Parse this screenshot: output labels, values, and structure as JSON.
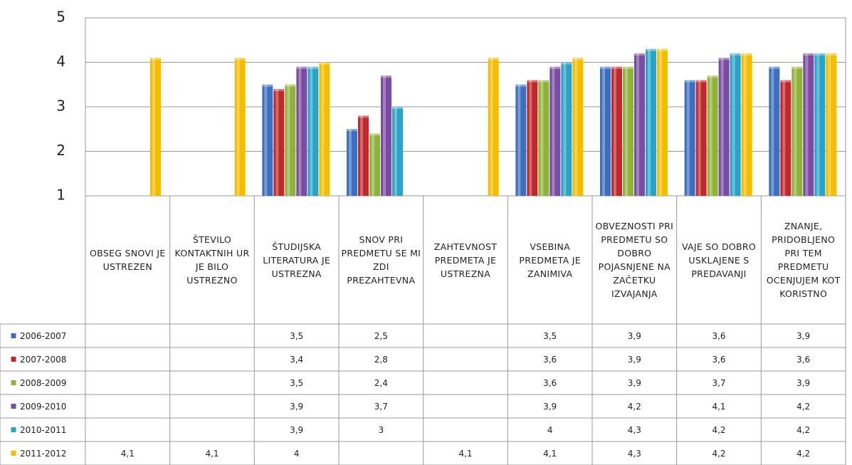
{
  "chart_data": {
    "type": "bar",
    "categories": [
      "OBSEG SNOVI JE USTREZEN",
      "ŠTEVILO KONTAKTNIH UR JE BILO USTREZNO",
      "ŠTUDIJSKA LITERATURA JE USTREZNA",
      "SNOV PRI PREDMETU SE MI ZDI PREZAHTEVNA",
      "ZAHTEVNOST PREDMETA JE USTREZNA",
      "VSEBINA PREDMETA JE ZANIMIVA",
      "OBVEZNOSTI PRI PREDMETU SO DOBRO POJASNJENE NA ZAČETKU IZVAJANJA",
      "VAJE SO DOBRO USKLAJENE S PREDAVANJI",
      "ZNANJE, PRIDOBLJENO PRI TEM PREDMETU OCENJUJEM KOT KORISTNO"
    ],
    "series": [
      {
        "name": "2006-2007",
        "color": "#3b6fc0",
        "values": [
          null,
          null,
          3.5,
          2.5,
          null,
          3.5,
          3.9,
          3.6,
          3.9
        ],
        "value_labels": [
          null,
          null,
          "3,5",
          "2,5",
          null,
          "3,5",
          "3,9",
          "3,6",
          "3,9"
        ]
      },
      {
        "name": "2007-2008",
        "color": "#c0282b",
        "values": [
          null,
          null,
          3.4,
          2.8,
          null,
          3.6,
          3.9,
          3.6,
          3.6
        ],
        "value_labels": [
          null,
          null,
          "3,4",
          "2,8",
          null,
          "3,6",
          "3,9",
          "3,6",
          "3,6"
        ]
      },
      {
        "name": "2008-2009",
        "color": "#8fb33a",
        "values": [
          null,
          null,
          3.5,
          2.4,
          null,
          3.6,
          3.9,
          3.7,
          3.9
        ],
        "value_labels": [
          null,
          null,
          "3,5",
          "2,4",
          null,
          "3,6",
          "3,9",
          "3,7",
          "3,9"
        ]
      },
      {
        "name": "2009-2010",
        "color": "#7a4ba3",
        "values": [
          null,
          null,
          3.9,
          3.7,
          null,
          3.9,
          4.2,
          4.1,
          4.2
        ],
        "value_labels": [
          null,
          null,
          "3,9",
          "3,7",
          null,
          "3,9",
          "4,2",
          "4,1",
          "4,2"
        ]
      },
      {
        "name": "2010-2011",
        "color": "#2aa4c6",
        "values": [
          null,
          null,
          3.9,
          3,
          null,
          4,
          4.3,
          4.2,
          4.2
        ],
        "value_labels": [
          null,
          null,
          "3,9",
          "3",
          null,
          "4",
          "4,3",
          "4,2",
          "4,2"
        ]
      },
      {
        "name": "2011-2012",
        "color": "#f3bd00",
        "values": [
          4.1,
          4.1,
          4,
          null,
          4.1,
          4.1,
          4.3,
          4.2,
          4.2
        ],
        "value_labels": [
          "4,1",
          "4,1",
          "4",
          null,
          "4,1",
          "4,1",
          "4,3",
          "4,2",
          "4,2"
        ]
      }
    ],
    "ylim": [
      1,
      5
    ],
    "yticks": [
      1,
      2,
      3,
      4,
      5
    ],
    "grid": true
  }
}
